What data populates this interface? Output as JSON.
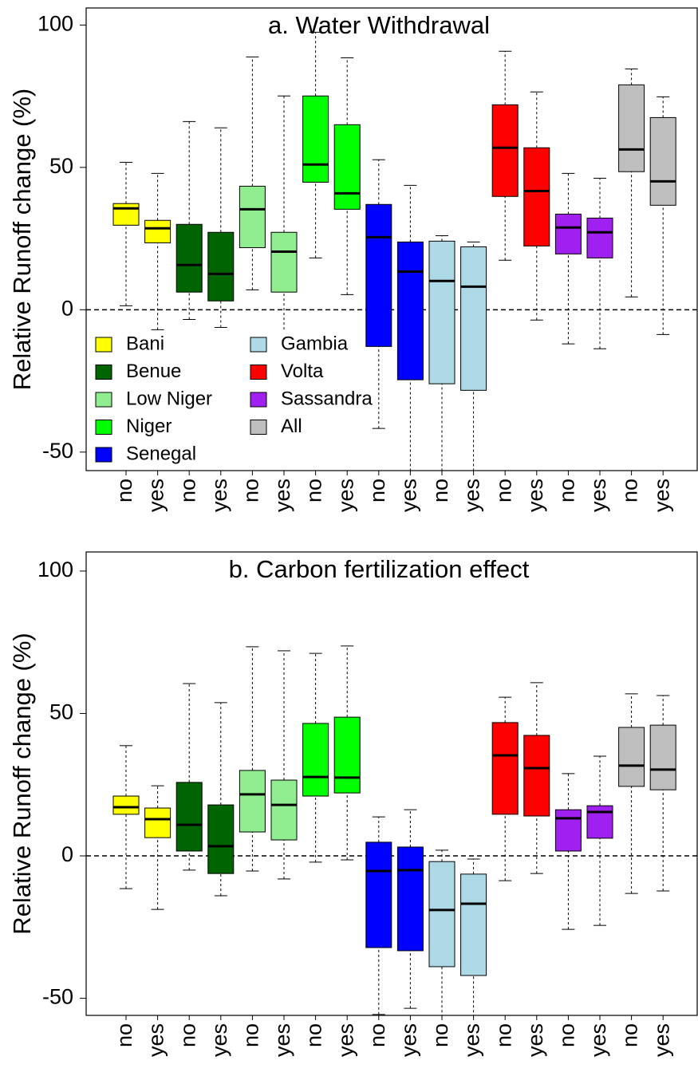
{
  "chart_data": [
    {
      "type": "boxplot",
      "title": "a. Water Withdrawal",
      "ylabel": "Relative Runoff change (%)",
      "categories": [
        "no",
        "yes",
        "no",
        "yes",
        "no",
        "yes",
        "no",
        "yes",
        "no",
        "yes",
        "no",
        "yes",
        "no",
        "yes",
        "no",
        "yes",
        "no",
        "yes"
      ],
      "ylim": [
        -56.5,
        106
      ],
      "yticks": [
        -50,
        0,
        50,
        100
      ],
      "hline": 0,
      "legend": "bottom-left",
      "series": [
        {
          "name": "Bani",
          "color": "#ffff00",
          "boxes": [
            [
              1.4,
              29.7,
              35.6,
              37.3,
              51.8
            ],
            [
              -7,
              23.5,
              28.6,
              31.4,
              47.9
            ]
          ]
        },
        {
          "name": "Benue",
          "color": "#006400",
          "boxes": [
            [
              -3.4,
              6.2,
              15.7,
              30,
              66.1
            ],
            [
              -6.2,
              3.1,
              12.6,
              27.2,
              63.9
            ]
          ]
        },
        {
          "name": "Low Niger",
          "color": "#90ee90",
          "boxes": [
            [
              7,
              21.8,
              35.3,
              43.4,
              88.8
            ],
            [
              -12,
              6.2,
              20.4,
              27.2,
              75.1
            ]
          ]
        },
        {
          "name": "Niger",
          "color": "#00ff00",
          "boxes": [
            [
              18.2,
              44.8,
              51,
              75.1,
              97.5
            ],
            [
              5.3,
              35.3,
              40.9,
              65,
              88.5
            ]
          ]
        },
        {
          "name": "Senegal",
          "color": "#0000ff",
          "boxes": [
            [
              -41.7,
              -12.9,
              25.5,
              37,
              52.7
            ],
            [
              -60,
              -24.6,
              13.4,
              23.8,
              43.7
            ]
          ]
        },
        {
          "name": "Gambia",
          "color": "#add8e6",
          "boxes": [
            [
              -60,
              -26,
              10.1,
              24.1,
              26
            ],
            [
              -60,
              -28.3,
              8.1,
              22.1,
              23.8
            ]
          ]
        },
        {
          "name": "Volta",
          "color": "#ff0000",
          "boxes": [
            [
              17.4,
              39.8,
              56.9,
              72,
              90.8
            ],
            [
              -3.6,
              22.4,
              41.7,
              56.9,
              76.5
            ]
          ]
        },
        {
          "name": "Sassandra",
          "color": "#a020f0",
          "boxes": [
            [
              -12,
              19.6,
              28.9,
              33.6,
              47.9
            ],
            [
              -13.7,
              18.2,
              27.2,
              32.2,
              46.2
            ]
          ]
        },
        {
          "name": "All",
          "color": "#bebebe",
          "boxes": [
            [
              4.5,
              48.5,
              56.3,
              79,
              84.6
            ],
            [
              -8.7,
              36.7,
              45.1,
              67.5,
              74.8
            ]
          ]
        }
      ]
    },
    {
      "type": "boxplot",
      "title": "b. Carbon fertilization effect",
      "ylabel": "Relative Runoff change (%)",
      "categories": [
        "no",
        "yes",
        "no",
        "yes",
        "no",
        "yes",
        "no",
        "yes",
        "no",
        "yes",
        "no",
        "yes",
        "no",
        "yes",
        "no",
        "yes",
        "no",
        "yes"
      ],
      "ylim": [
        -56,
        106.7
      ],
      "yticks": [
        -50,
        0,
        50,
        100
      ],
      "hline": 0,
      "legend": false,
      "series": [
        {
          "name": "Bani",
          "color": "#ffff00",
          "boxes": [
            [
              -11.5,
              14.6,
              17.1,
              21,
              38.7
            ],
            [
              -18.8,
              6.4,
              12.9,
              16.8,
              24.6
            ]
          ]
        },
        {
          "name": "Benue",
          "color": "#006400",
          "boxes": [
            [
              -5,
              1.7,
              10.9,
              25.8,
              60.5
            ],
            [
              -14,
              -6.2,
              3.4,
              17.9,
              53.8
            ]
          ]
        },
        {
          "name": "Low Niger",
          "color": "#90ee90",
          "boxes": [
            [
              -5.3,
              8.4,
              21.6,
              30,
              73.4
            ],
            [
              -8.1,
              5.6,
              17.9,
              26.6,
              72
            ]
          ]
        },
        {
          "name": "Niger",
          "color": "#00ff00",
          "boxes": [
            [
              -2.2,
              21,
              27.7,
              46.5,
              71.1
            ],
            [
              -1.4,
              22.1,
              27.5,
              48.7,
              73.7
            ]
          ]
        },
        {
          "name": "Senegal",
          "color": "#0000ff",
          "boxes": [
            [
              -55.7,
              -32.2,
              -5.3,
              4.8,
              13.7
            ],
            [
              -53.5,
              -33.3,
              -5,
              3.1,
              16.2
            ]
          ]
        },
        {
          "name": "Gambia",
          "color": "#add8e6",
          "boxes": [
            [
              -60,
              -38.9,
              -19,
              -2,
              2
            ],
            [
              -60,
              -42,
              -16.8,
              -6.4,
              -1.1
            ]
          ]
        },
        {
          "name": "Volta",
          "color": "#ff0000",
          "boxes": [
            [
              -8.7,
              14.6,
              35.3,
              46.8,
              55.7
            ],
            [
              -6.2,
              14,
              30.8,
              42.3,
              60.8
            ]
          ]
        },
        {
          "name": "Sassandra",
          "color": "#a020f0",
          "boxes": [
            [
              -25.8,
              1.7,
              13.2,
              16.2,
              28.9
            ],
            [
              -24.4,
              6.2,
              15.4,
              17.6,
              35
            ]
          ]
        },
        {
          "name": "All",
          "color": "#bebebe",
          "boxes": [
            [
              -13.2,
              24.4,
              31.7,
              45.1,
              56.9
            ],
            [
              -12.3,
              23.2,
              30.3,
              45.9,
              56.3
            ]
          ]
        }
      ]
    }
  ]
}
